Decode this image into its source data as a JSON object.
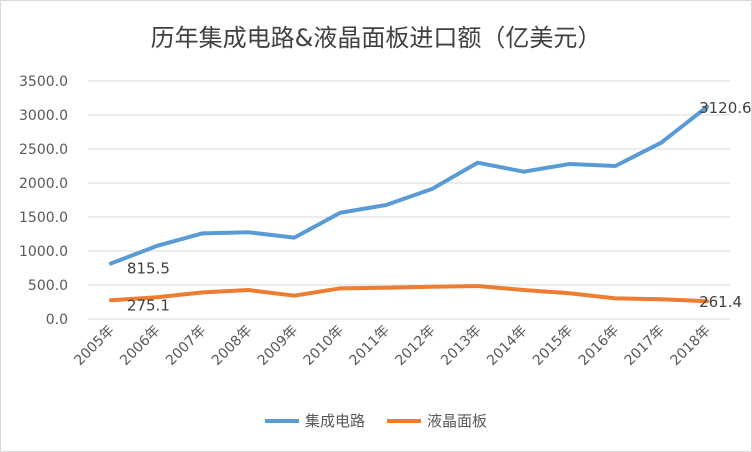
{
  "chart_data": {
    "type": "line",
    "title": "历年集成电路&液晶面板进口额（亿美元）",
    "categories": [
      "2005年",
      "2006年",
      "2007年",
      "2008年",
      "2009年",
      "2010年",
      "2011年",
      "2012年",
      "2013年",
      "2014年",
      "2015年",
      "2016年",
      "2017年",
      "2018年"
    ],
    "series": [
      {
        "name": "集成电路",
        "color": "#5B9BD5",
        "values": [
          815.5,
          1074,
          1260,
          1275,
          1196,
          1563,
          1676,
          1912,
          2299,
          2166,
          2279,
          2250,
          2593,
          3120.6
        ]
      },
      {
        "name": "液晶面板",
        "color": "#ED7D31",
        "values": [
          275.1,
          320,
          392,
          426,
          343,
          451,
          460,
          475,
          485,
          426,
          378,
          304,
          290,
          261.4
        ]
      }
    ],
    "data_labels": [
      {
        "series": 0,
        "index": 0,
        "text": "815.5"
      },
      {
        "series": 0,
        "index": 13,
        "text": "3120.6"
      },
      {
        "series": 1,
        "index": 0,
        "text": "275.1"
      },
      {
        "series": 1,
        "index": 13,
        "text": "261.4"
      }
    ],
    "yticks": [
      "0.0",
      "500.0",
      "1000.0",
      "1500.0",
      "2000.0",
      "2500.0",
      "3000.0",
      "3500.0"
    ],
    "ylim": [
      0,
      3500
    ],
    "grid": true,
    "legend": "bottom"
  }
}
